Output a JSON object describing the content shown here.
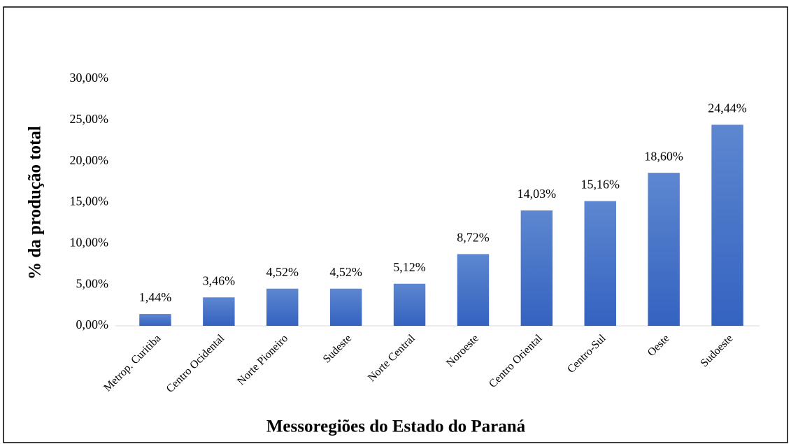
{
  "chart_data": {
    "type": "bar",
    "x_label": "Messoregiões do Estado do Paraná",
    "y_label": "% da produção total",
    "categories": [
      "Metrop. Curitiba",
      "Centro Ocidental",
      "Norte Pioneiro",
      "Sudeste",
      "Norte Central",
      "Noroeste",
      "Centro Oriental",
      "Centro-Sul",
      "Oeste",
      "Sudoeste"
    ],
    "values": [
      1.44,
      3.46,
      4.52,
      4.52,
      5.12,
      8.72,
      14.03,
      15.16,
      18.6,
      24.44
    ],
    "value_labels": [
      "1,44%",
      "3,46%",
      "4,52%",
      "4,52%",
      "5,12%",
      "8,72%",
      "14,03%",
      "15,16%",
      "18,60%",
      "24,44%"
    ],
    "color": "#4472c4",
    "ylim": [
      0,
      30
    ],
    "yticks": [
      {
        "value": 0,
        "label": "0,00%"
      },
      {
        "value": 5,
        "label": "5,00%"
      },
      {
        "value": 10,
        "label": "10,00%"
      },
      {
        "value": 15,
        "label": "15,00%"
      },
      {
        "value": 20,
        "label": "20,00%"
      },
      {
        "value": 25,
        "label": "25,00%"
      },
      {
        "value": 30,
        "label": "30,00%"
      }
    ],
    "grid": false
  }
}
